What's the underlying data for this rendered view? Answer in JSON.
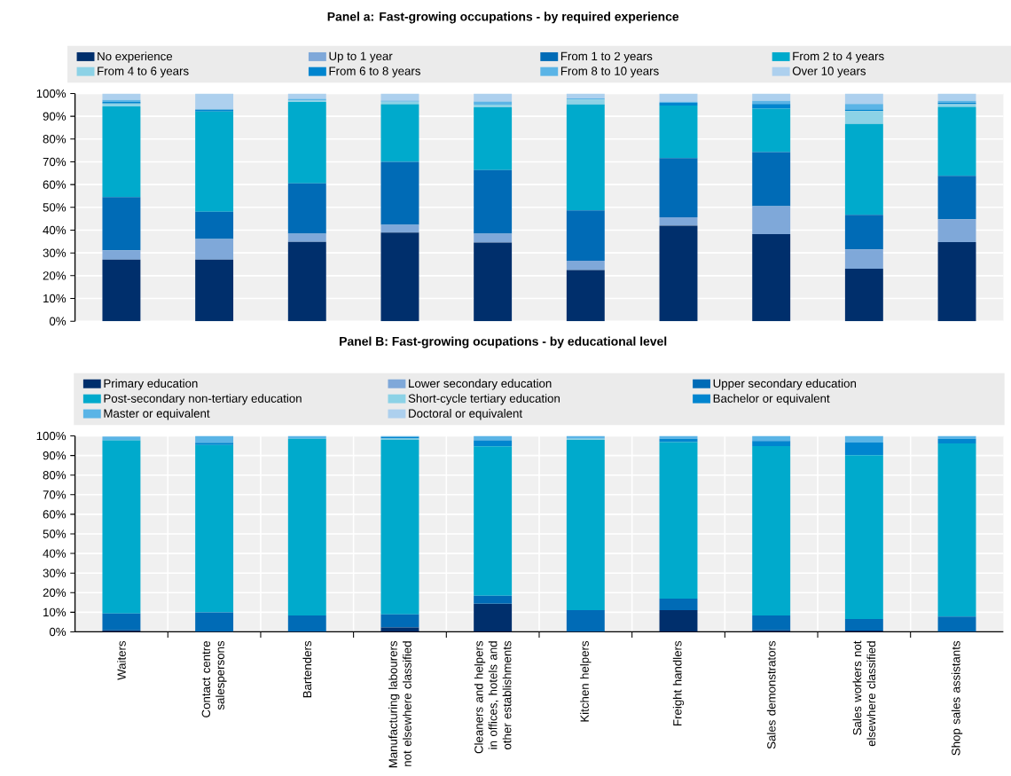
{
  "chart_data": [
    {
      "type": "bar",
      "stacked": true,
      "title": "Panel a: Fast-growing occupations - by required experience",
      "categories": [
        null,
        null,
        null,
        null,
        null,
        null,
        null,
        null,
        null,
        null
      ],
      "ylim": [
        0,
        100
      ],
      "yticks": [
        {
          "value": 0,
          "label": "0%"
        },
        {
          "value": 10,
          "label": "10%"
        },
        {
          "value": 20,
          "label": "20%"
        },
        {
          "value": 30,
          "label": "30%"
        },
        {
          "value": 40,
          "label": "40%"
        },
        {
          "value": 50,
          "label": "50%"
        },
        {
          "value": 60,
          "label": "60%"
        },
        {
          "value": 70,
          "label": "70%"
        },
        {
          "value": 80,
          "label": "80%"
        },
        {
          "value": 90,
          "label": "90%"
        },
        {
          "value": 100,
          "label": "100%"
        }
      ],
      "grid": "y",
      "legend": "top",
      "tick_labels": "y",
      "series": [
        {
          "name": "No experience",
          "color": "#002f6c",
          "values": [
            27,
            27,
            34.8,
            38.9,
            34.5,
            22.5,
            42,
            38.2,
            23.1,
            34.7
          ]
        },
        {
          "name": "Up to 1 year",
          "color": "#7fa8d9",
          "values": [
            4.1,
            9.1,
            3.6,
            3.4,
            3.9,
            4.1,
            3.6,
            12.3,
            8.4,
            10.1
          ]
        },
        {
          "name": "From 1 to 2 years",
          "color": "#006bb6",
          "values": [
            23.4,
            12,
            22.1,
            27.7,
            28,
            22.1,
            26,
            23.8,
            15.2,
            19.1
          ]
        },
        {
          "name": "From 2 to 4 years",
          "color": "#00aacc",
          "values": [
            39.8,
            44,
            35.8,
            25.3,
            27.5,
            46.5,
            23.1,
            19.1,
            39.9,
            30.2
          ]
        },
        {
          "name": "From 4 to 6 years",
          "color": "#8cd2e6",
          "values": [
            1.3,
            0,
            0.6,
            1.1,
            1.2,
            2.2,
            0,
            0,
            5.7,
            1.2
          ]
        },
        {
          "name": "From 6 to 8 years",
          "color": "#0085cf",
          "values": [
            0.7,
            0.9,
            0,
            0,
            0,
            0,
            1.2,
            2,
            0.7,
            0.7
          ]
        },
        {
          "name": "From 8 to 10 years",
          "color": "#5ab4e6",
          "values": [
            0.9,
            0,
            0.7,
            0.5,
            1.4,
            0.4,
            0.5,
            1.4,
            2.4,
            0.8
          ]
        },
        {
          "name": "Over 10 years",
          "color": "#add0ee",
          "values": [
            2.8,
            7,
            2.4,
            3.1,
            3.5,
            2.2,
            3.6,
            3.2,
            4.6,
            3.2
          ]
        }
      ]
    },
    {
      "type": "bar",
      "stacked": true,
      "title": "Panel B: Fast-growing ocupations - by educational level",
      "categories": [
        "Waiters",
        "Contact centre salespersons",
        "Bartenders",
        "Manufacturing labourers not elsewhere classified",
        "Cleaners and helpers in offices, hotels and other establishments",
        "Kitchen helpers",
        "Freight handlers",
        "Sales demonstrators",
        "Sales workers not elsewhere classified",
        "Shop sales assistants"
      ],
      "ylim": [
        0,
        100
      ],
      "yticks": [
        {
          "value": 0,
          "label": "0%"
        },
        {
          "value": 10,
          "label": "10%"
        },
        {
          "value": 20,
          "label": "20%"
        },
        {
          "value": 30,
          "label": "30%"
        },
        {
          "value": 40,
          "label": "40%"
        },
        {
          "value": 50,
          "label": "50%"
        },
        {
          "value": 60,
          "label": "60%"
        },
        {
          "value": 70,
          "label": "70%"
        },
        {
          "value": 80,
          "label": "80%"
        },
        {
          "value": 90,
          "label": "90%"
        },
        {
          "value": 100,
          "label": "100%"
        }
      ],
      "grid": true,
      "legend": "top",
      "series": [
        {
          "name": "Primary education",
          "color": "#002f6c",
          "values": [
            0.8,
            0,
            0,
            2.2,
            14.3,
            0,
            11.1,
            0.8,
            0.7,
            0
          ]
        },
        {
          "name": "Lower secondary education",
          "color": "#7fa8d9",
          "values": [
            0,
            0,
            0,
            0,
            0,
            0,
            0,
            0,
            0,
            0
          ]
        },
        {
          "name": "Upper secondary education",
          "color": "#006bb6",
          "values": [
            8.6,
            9.9,
            8.3,
            6.7,
            4.1,
            11.1,
            5.9,
            7.5,
            5.8,
            7.8
          ]
        },
        {
          "name": "Post-secondary non-tertiary education",
          "color": "#00aacc",
          "values": [
            88.4,
            85.5,
            90.3,
            89.2,
            76.3,
            86.9,
            79.8,
            86.5,
            83.7,
            88.4
          ]
        },
        {
          "name": "Short-cycle tertiary education",
          "color": "#8cd2e6",
          "values": [
            null,
            0,
            0,
            0.6,
            0,
            0.5,
            0,
            0,
            0,
            0
          ]
        },
        {
          "name": "Bachelor or equivalent",
          "color": "#0085cf",
          "values": [
            0,
            1.1,
            0,
            0.7,
            3.1,
            0,
            1.7,
            2.6,
            6.4,
            2.3
          ]
        },
        {
          "name": "Master or equivalent",
          "color": "#5ab4e6",
          "values": [
            1.9,
            3.5,
            1.4,
            0.6,
            2.2,
            1.5,
            1.5,
            2.6,
            3.4,
            1.5
          ]
        },
        {
          "name": "Doctoral or equivalent",
          "color": "#add0ee",
          "values": [
            0,
            0,
            0,
            0,
            0,
            0,
            0,
            0,
            0,
            0
          ]
        }
      ]
    }
  ]
}
